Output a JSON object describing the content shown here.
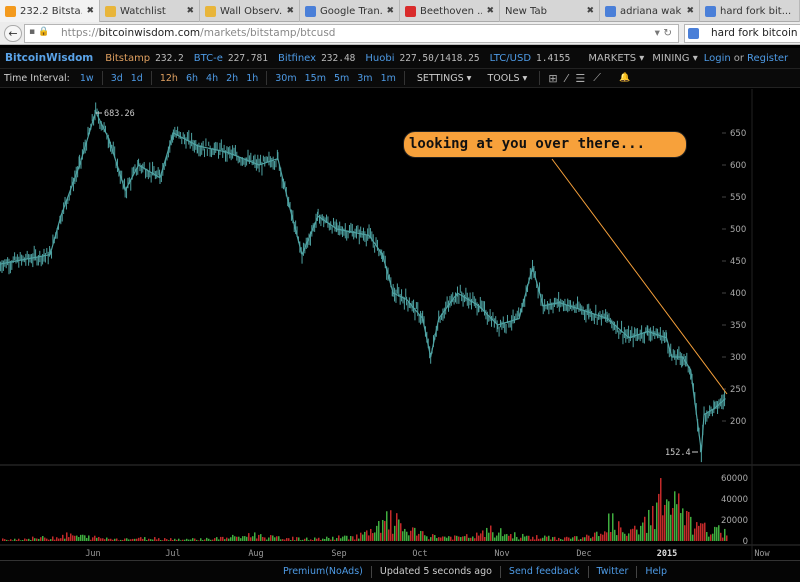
{
  "browser": {
    "tabs": [
      {
        "title": "232.2 Bitsta...",
        "icon": "chart-icon",
        "color": "#f39a1e",
        "active": true
      },
      {
        "title": "Watchlist",
        "icon": "coin-icon",
        "color": "#e8b53a"
      },
      {
        "title": "Wall Observ...",
        "icon": "coin-icon",
        "color": "#e8b53a"
      },
      {
        "title": "Google Tran...",
        "icon": "translate-icon",
        "color": "#4a7fd8"
      },
      {
        "title": "Beethoven ...",
        "icon": "youtube-icon",
        "color": "#d92b2b"
      },
      {
        "title": "New Tab",
        "icon": "",
        "color": ""
      },
      {
        "title": "adriana wak...",
        "icon": "google-icon",
        "color": "#4a7fd8"
      },
      {
        "title": "hard fork bit...",
        "icon": "google-icon",
        "color": "#4a7fd8"
      }
    ],
    "url_prefix": "https://",
    "url_domain": "bitcoinwisdom.com",
    "url_path": "/markets/bitstamp/btcusd",
    "search_value": "hard fork bitcoin rolle"
  },
  "header": {
    "logo": "BitcoinWisdom",
    "markets": [
      {
        "name": "Bitstamp",
        "price": "232.2",
        "selected": true
      },
      {
        "name": "BTC-e",
        "price": "227.781"
      },
      {
        "name": "Bitfinex",
        "price": "232.48"
      },
      {
        "name": "Huobi",
        "price": "227.50/1418.25"
      },
      {
        "name": "LTC/USD",
        "price": "1.4155"
      }
    ],
    "menus": [
      "MARKETS ▾",
      "MINING ▾"
    ],
    "login": "Login",
    "or": "or",
    "register": "Register"
  },
  "toolbar": {
    "label": "Time Interval:",
    "intervals": [
      [
        "1w"
      ],
      [
        "3d",
        "1d"
      ],
      [
        "12h",
        "6h",
        "4h",
        "2h",
        "1h"
      ],
      [
        "30m",
        "15m",
        "5m",
        "3m",
        "1m"
      ]
    ],
    "selected": "12h",
    "settings": "SETTINGS ▾",
    "tools": "TOOLS ▾",
    "tool_icons": [
      "crosshair-icon",
      "line-icon",
      "horizontal-lines-icon",
      "fib-fan-icon",
      "bell-icon"
    ]
  },
  "annotation": "looking at you over there...",
  "colors": {
    "price": "#4fa3a3",
    "up": "#3fae3f",
    "down": "#c42a2a",
    "accent": "#f7a13b",
    "link": "#4e9be6"
  },
  "chart_data": {
    "type": "line",
    "price": {
      "x": [
        "2014-04-27",
        "2014-05-16",
        "2014-05-20",
        "2014-05-27",
        "2014-06-02",
        "2014-06-07",
        "2014-06-13",
        "2014-06-18",
        "2014-06-26",
        "2014-07-01",
        "2014-07-10",
        "2014-07-21",
        "2014-08-02",
        "2014-08-09",
        "2014-08-13",
        "2014-08-18",
        "2014-08-24",
        "2014-08-31",
        "2014-09-12",
        "2014-09-17",
        "2014-09-21",
        "2014-09-26",
        "2014-10-02",
        "2014-10-05",
        "2014-10-08",
        "2014-10-15",
        "2014-10-23",
        "2014-10-30",
        "2014-11-07",
        "2014-11-12",
        "2014-11-16",
        "2014-11-22",
        "2014-12-03",
        "2014-12-10",
        "2014-12-18",
        "2014-12-25",
        "2015-01-01",
        "2015-01-03",
        "2015-01-07",
        "2015-01-10",
        "2015-01-14",
        "2015-01-15",
        "2015-01-19",
        "2015-01-23"
      ],
      "y": [
        445,
        460,
        520,
        600,
        683.26,
        640,
        560,
        600,
        580,
        650,
        630,
        620,
        600,
        610,
        540,
        460,
        520,
        500,
        490,
        460,
        400,
        390,
        360,
        300,
        360,
        400,
        380,
        350,
        360,
        440,
        380,
        385,
        370,
        360,
        330,
        340,
        330,
        300,
        300,
        280,
        152.4,
        210,
        220,
        235
      ]
    },
    "annotations": {
      "high": "683.26",
      "low": "152.4"
    },
    "yticks": [
      "650",
      "600",
      "550",
      "500",
      "450",
      "400",
      "350",
      "300",
      "250",
      "200"
    ],
    "ylim": [
      152,
      700
    ],
    "volume": {
      "yticks": [
        "60000",
        "40000",
        "20000",
        "0"
      ],
      "values": [
        3000,
        2500,
        4000,
        5000,
        8000,
        6000,
        4000,
        3000,
        3500,
        4000,
        3000,
        2500,
        3000,
        4000,
        6000,
        9000,
        5000,
        4000,
        3000,
        3500,
        5000,
        7000,
        12000,
        30000,
        15000,
        8000,
        6000,
        5000,
        7000,
        14000,
        9000,
        6000,
        5000,
        4000,
        5000,
        6000,
        28000,
        8000,
        22000,
        62000,
        45000,
        18000,
        15000,
        12000
      ]
    },
    "xticks": [
      "Jun",
      "Jul",
      "Aug",
      "Sep",
      "Oct",
      "Nov",
      "Dec",
      "2015",
      "Now"
    ]
  },
  "footer": [
    "Premium(NoAds)",
    "Updated 5 seconds ago",
    "Send feedback",
    "Twitter",
    "Help"
  ]
}
